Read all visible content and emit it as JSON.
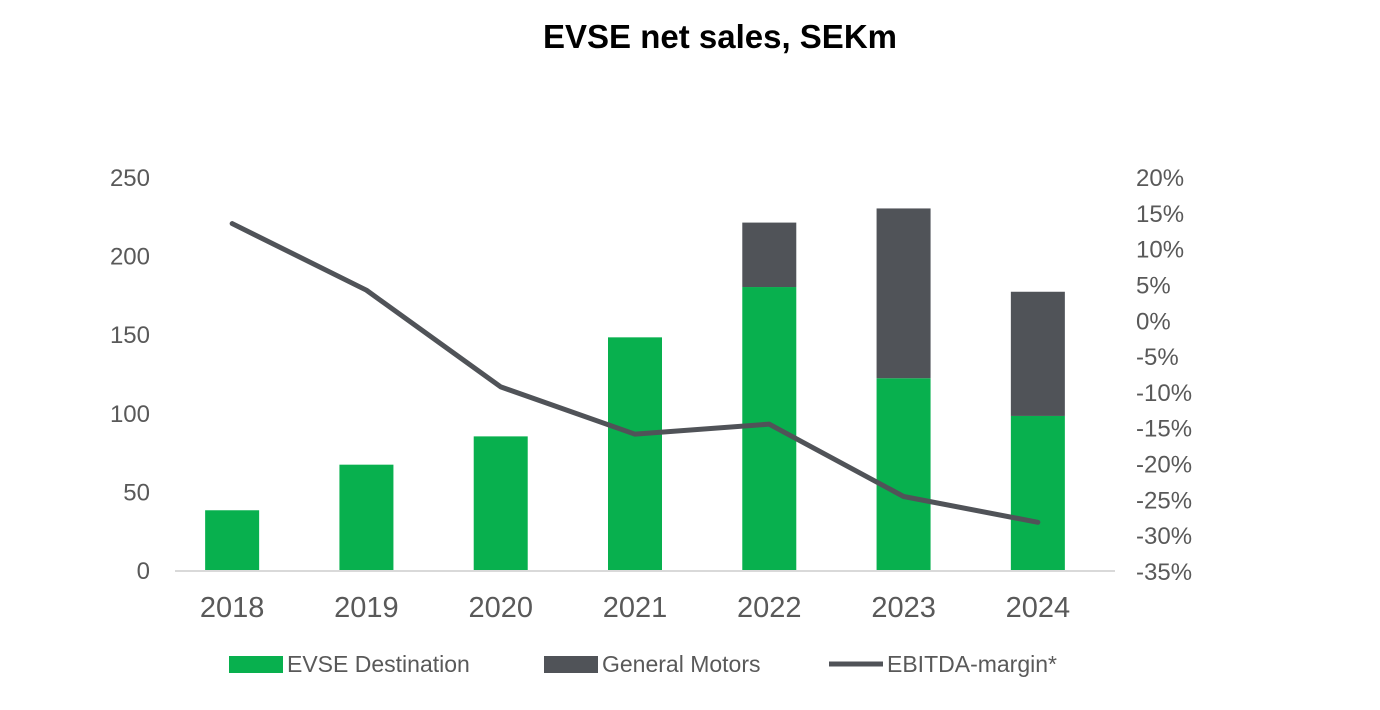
{
  "chart_data": {
    "type": "bar",
    "title": "EVSE net sales, SEKm",
    "categories": [
      "2018",
      "2019",
      "2020",
      "2021",
      "2022",
      "2023",
      "2024"
    ],
    "series": [
      {
        "name": "EVSE Destination",
        "kind": "bar",
        "axis": "left",
        "color": "#08b04e",
        "values": [
          38,
          67,
          85,
          148,
          180,
          122,
          98
        ]
      },
      {
        "name": "General Motors",
        "kind": "bar",
        "axis": "left",
        "color": "#505358",
        "values": [
          0,
          0,
          0,
          0,
          41,
          108,
          79
        ]
      },
      {
        "name": "EBITDA-margin*",
        "kind": "line",
        "axis": "right",
        "color": "#505358",
        "values": [
          13.5,
          4.2,
          -9.3,
          -15.9,
          -14.5,
          -24.6,
          -28.2
        ]
      }
    ],
    "stacked": true,
    "ylim": [
      0,
      250
    ],
    "yticks": [
      "0",
      "50",
      "100",
      "150",
      "200",
      "250"
    ],
    "ytick_values": [
      0,
      50,
      100,
      150,
      200,
      250
    ],
    "y2lim": [
      -35,
      20
    ],
    "y2ticks": [
      "20%",
      "15%",
      "10%",
      "5%",
      "0%",
      "-5%",
      "-10%",
      "-15%",
      "-20%",
      "-25%",
      "-30%",
      "-35%"
    ],
    "y2tick_values": [
      20,
      15,
      10,
      5,
      0,
      -5,
      -10,
      -15,
      -20,
      -25,
      -30,
      -35
    ],
    "xlabel": "",
    "ylabel": "",
    "y2label": "",
    "grid": false,
    "legend": {
      "position": "bottom",
      "entries": [
        "EVSE Destination",
        "General Motors",
        "EBITDA-margin*"
      ]
    }
  }
}
